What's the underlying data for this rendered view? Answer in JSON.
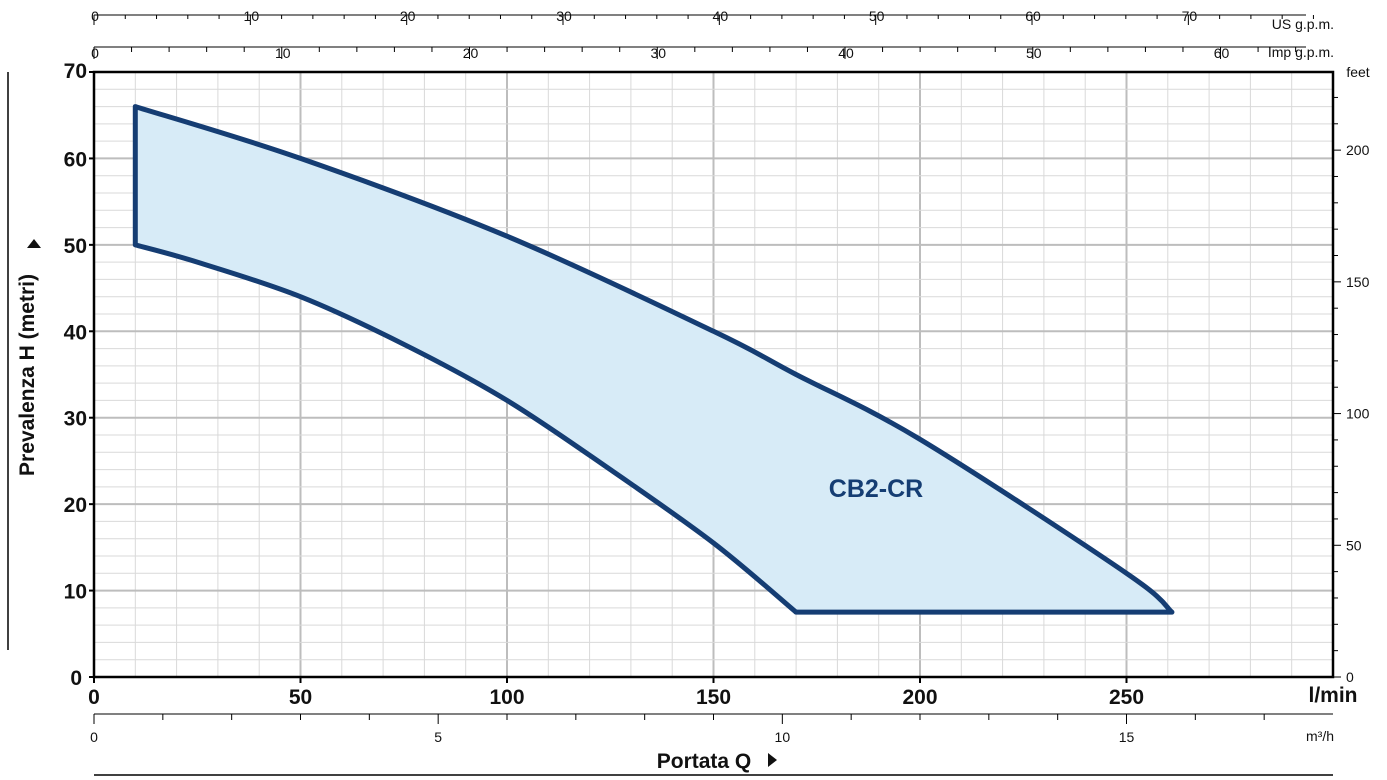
{
  "chart_data": {
    "type": "area",
    "title": "",
    "xlabel": "Portata Q",
    "ylabel": "Prevalenza H (metri)",
    "xlim": [
      0,
      300
    ],
    "ylim": [
      0,
      70
    ],
    "x_unit": "l/min",
    "x_ticks": [
      0,
      50,
      100,
      150,
      200,
      250
    ],
    "y_ticks": [
      0,
      10,
      20,
      30,
      40,
      50,
      60,
      70
    ],
    "grid": true,
    "colors": {
      "curve": "#153d73",
      "fill": "#d7ebf7",
      "grid_major": "#bdbdbd",
      "grid_minor": "#d9d9d9",
      "axis": "#000000"
    },
    "series": [
      {
        "name": "CB2-CR",
        "curve": "max",
        "x": [
          10,
          50,
          100,
          150,
          170,
          200,
          250,
          261
        ],
        "y": [
          66,
          60,
          51,
          40,
          35,
          27.5,
          12,
          7.5
        ]
      },
      {
        "name": "CB2-CR",
        "curve": "min",
        "x": [
          10,
          25,
          50,
          75,
          100,
          125,
          150,
          170
        ],
        "y": [
          50,
          48,
          44,
          38.5,
          32,
          24,
          15.5,
          7.5
        ]
      },
      {
        "name": "CB2-CR",
        "curve": "floor",
        "x": [
          170,
          261
        ],
        "y": [
          7.5,
          7.5
        ]
      }
    ],
    "secondary_axes": {
      "top_us_gpm": {
        "unit": "US g.p.m.",
        "ticks": [
          0,
          10,
          20,
          30,
          40,
          50,
          60,
          70
        ]
      },
      "top_imp_gpm": {
        "unit": "Imp g.p.m.",
        "ticks": [
          0,
          10,
          20,
          30,
          40,
          50,
          60
        ]
      },
      "right_feet": {
        "unit": "feet",
        "ticks": [
          0,
          50,
          100,
          150,
          200
        ]
      },
      "bottom_m3h": {
        "unit": "m³/h",
        "ticks": [
          0,
          5,
          10,
          15
        ]
      }
    },
    "annotations": [
      {
        "text": "CB2-CR",
        "x": 200,
        "y": 21.5
      }
    ]
  }
}
